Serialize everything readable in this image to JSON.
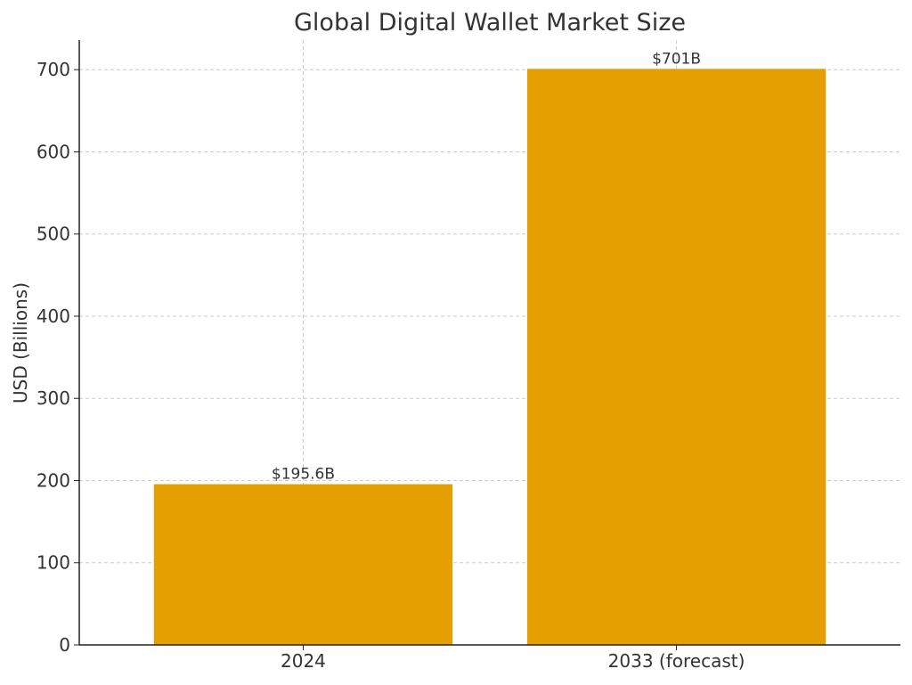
{
  "chart_data": {
    "type": "bar",
    "title": "Global Digital Wallet Market Size",
    "xlabel": "",
    "ylabel": "USD (Billions)",
    "categories": [
      "2024",
      "2033 (forecast)"
    ],
    "values": [
      195.6,
      701
    ],
    "data_labels": [
      "$195.6B",
      "$701B"
    ],
    "ylim": [
      0,
      736
    ],
    "yticks": [
      0,
      100,
      200,
      300,
      400,
      500,
      600,
      700
    ],
    "grid": true,
    "legend": "none",
    "bar_color": "#e69f00",
    "grid_color": "#cccccc",
    "text_color": "#333333",
    "axis_color": "#222222"
  }
}
